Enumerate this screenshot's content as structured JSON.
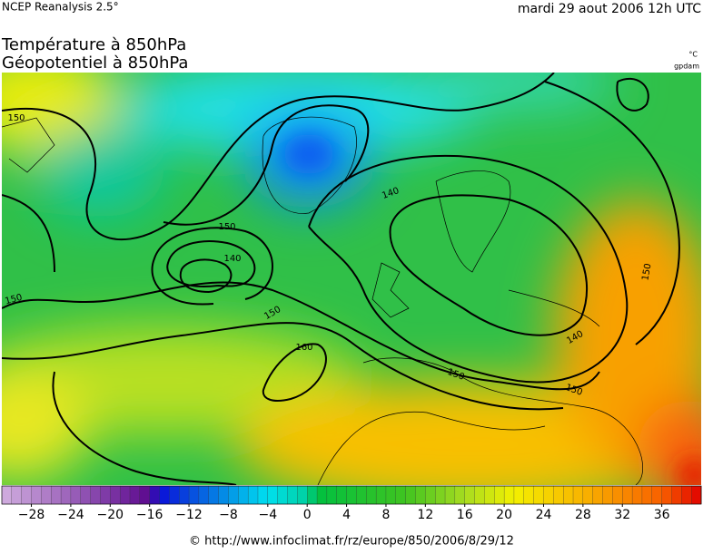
{
  "header": {
    "source": "NCEP Reanalysis 2.5°",
    "date": "mardi 29 aout 2006 12h UTC"
  },
  "titles": [
    "Température à 850hPa",
    "Géopotentiel à 850hPa"
  ],
  "units": [
    "°C",
    "gpdam"
  ],
  "contour_labels": [
    150,
    150,
    140,
    140,
    150,
    150,
    160,
    150,
    140,
    150,
    150
  ],
  "colorbar": {
    "range": [
      -31,
      40
    ],
    "colormap": [
      {
        "value": -31,
        "color": "#d2aee0"
      },
      {
        "value": -16,
        "color": "#5c0a8e"
      },
      {
        "value": -15,
        "color": "#0a10d8"
      },
      {
        "value": -4,
        "color": "#00e0f0"
      },
      {
        "value": 0,
        "color": "#00d0a0"
      },
      {
        "value": 1,
        "color": "#00c040"
      },
      {
        "value": 10,
        "color": "#40c420"
      },
      {
        "value": 16,
        "color": "#a8dc20"
      },
      {
        "value": 21,
        "color": "#f4f000"
      },
      {
        "value": 28,
        "color": "#f8b400"
      },
      {
        "value": 36,
        "color": "#f86000"
      },
      {
        "value": 40,
        "color": "#e00000"
      }
    ],
    "ticks": [
      {
        "value": -28,
        "label": "−28"
      },
      {
        "value": -24,
        "label": "−24"
      },
      {
        "value": -20,
        "label": "−20"
      },
      {
        "value": -16,
        "label": "−16"
      },
      {
        "value": -12,
        "label": "−12"
      },
      {
        "value": -8,
        "label": "−8"
      },
      {
        "value": -4,
        "label": "−4"
      },
      0,
      4,
      8,
      12,
      16,
      20,
      24,
      28,
      32,
      36
    ]
  },
  "footer": "© http://www.infoclimat.fr/rz/europe/850/2006/8/29/12"
}
